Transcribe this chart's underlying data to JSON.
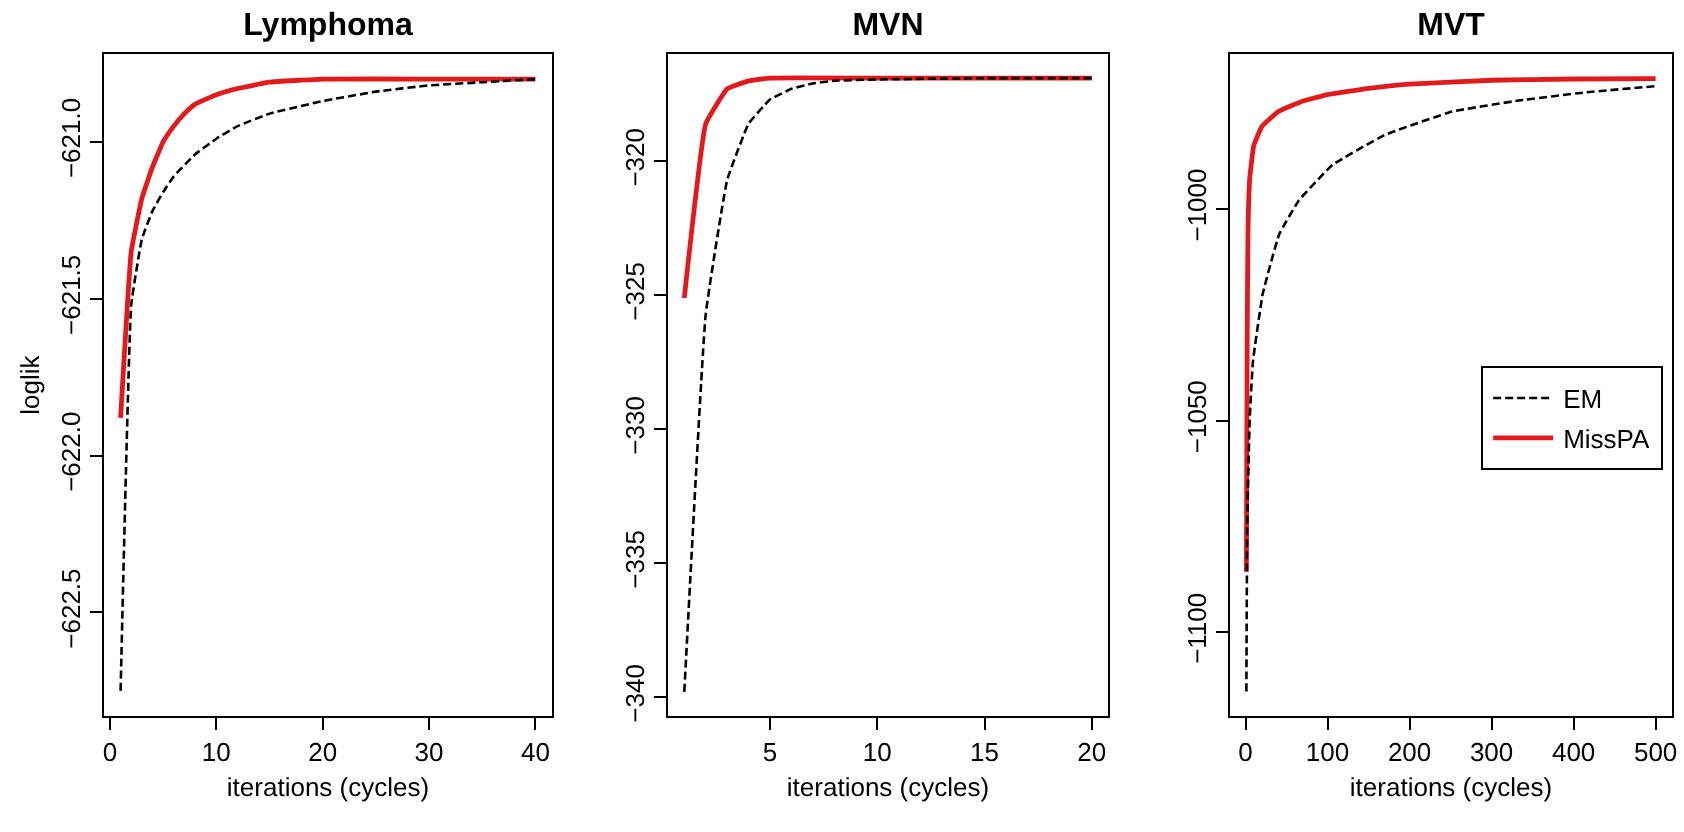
{
  "chart_data": [
    {
      "type": "line",
      "title": "Lymphoma",
      "xlabel": "iterations (cycles)",
      "ylabel": "loglik",
      "xlim": [
        -0.56,
        41.56
      ],
      "xticks": [
        0,
        10,
        20,
        30,
        40
      ],
      "ylim": [
        -622.83,
        -620.72
      ],
      "yticks": [
        {
          "value": -621,
          "label": "−621.0"
        },
        {
          "value": -621.5,
          "label": "−621.5"
        },
        {
          "value": -622,
          "label": "−622.0"
        },
        {
          "value": -622.5,
          "label": "−622.5"
        }
      ],
      "grid": false,
      "legend": false,
      "marker": "none",
      "series": [
        {
          "color": "#000000",
          "line_style": "dashed",
          "x": [
            1,
            2,
            3,
            4,
            5,
            6,
            8,
            10,
            12,
            15,
            20,
            25,
            30,
            35,
            40
          ],
          "values": [
            -622.75,
            -621.52,
            -621.31,
            -621.22,
            -621.16,
            -621.11,
            -621.04,
            -620.99,
            -620.95,
            -620.91,
            -620.87,
            -620.84,
            -620.82,
            -620.81,
            -620.8
          ]
        },
        {
          "color": "#e31a1c",
          "line_style": "solid",
          "x": [
            1,
            2,
            3,
            4,
            5,
            6,
            7,
            8,
            10,
            12,
            15,
            20,
            30,
            40
          ],
          "values": [
            -621.88,
            -621.35,
            -621.18,
            -621.08,
            -621.0,
            -620.95,
            -620.91,
            -620.88,
            -620.85,
            -620.83,
            -620.81,
            -620.8,
            -620.8,
            -620.8
          ]
        }
      ]
    },
    {
      "type": "line",
      "title": "MVN",
      "xlabel": "iterations (cycles)",
      "xlim": [
        0.24,
        20.76
      ],
      "xticks": [
        5,
        10,
        15,
        20
      ],
      "ylim": [
        -340.7,
        -316.0
      ],
      "yticks": [
        {
          "value": -320,
          "label": "−320"
        },
        {
          "value": -325,
          "label": "−325"
        },
        {
          "value": -330,
          "label": "−330"
        },
        {
          "value": -335,
          "label": "−335"
        },
        {
          "value": -340,
          "label": "−340"
        }
      ],
      "grid": false,
      "legend": false,
      "marker": "none",
      "series": [
        {
          "color": "#000000",
          "line_style": "dashed",
          "x": [
            1,
            2,
            3,
            4,
            5,
            6,
            7,
            8,
            10,
            15,
            20
          ],
          "values": [
            -339.8,
            -325.7,
            -320.7,
            -318.6,
            -317.7,
            -317.3,
            -317.1,
            -317.0,
            -316.95,
            -316.9,
            -316.9
          ]
        },
        {
          "color": "#e31a1c",
          "line_style": "solid",
          "x": [
            1,
            2,
            3,
            4,
            5,
            10,
            15,
            20
          ],
          "values": [
            -325.1,
            -318.6,
            -317.3,
            -317.0,
            -316.9,
            -316.9,
            -316.9,
            -316.9
          ]
        }
      ]
    },
    {
      "type": "line",
      "title": "MVT",
      "xlabel": "iterations (cycles)",
      "xlim": [
        -18.96,
        519.96
      ],
      "xticks": [
        0,
        100,
        200,
        300,
        400,
        500
      ],
      "ylim": [
        -1119.8,
        -963.4
      ],
      "yticks": [
        {
          "value": -1000,
          "label": "−1000"
        },
        {
          "value": -1050,
          "label": "−1050"
        },
        {
          "value": -1100,
          "label": "−1100"
        }
      ],
      "grid": false,
      "legend": "right",
      "marker": "none",
      "series": [
        {
          "name": "EM",
          "color": "#000000",
          "line_style": "dashed",
          "x": [
            1,
            2,
            5,
            9,
            21,
            41,
            65,
            106,
            170,
            252,
            333,
            413,
            500
          ],
          "values": [
            -1114,
            -1075,
            -1050,
            -1036,
            -1020,
            -1006,
            -998,
            -989.6,
            -982.5,
            -977,
            -974.4,
            -972.5,
            -971
          ]
        },
        {
          "name": "MissPA",
          "color": "#e31a1c",
          "line_style": "solid",
          "x": [
            1,
            2,
            3,
            5,
            10,
            20,
            40,
            70,
            100,
            150,
            200,
            300,
            400,
            500
          ],
          "values": [
            -1085.7,
            -1030,
            -1005,
            -993,
            -985,
            -980.5,
            -977,
            -974.5,
            -973,
            -971.5,
            -970.5,
            -969.6,
            -969.3,
            -969.2
          ]
        }
      ]
    }
  ]
}
